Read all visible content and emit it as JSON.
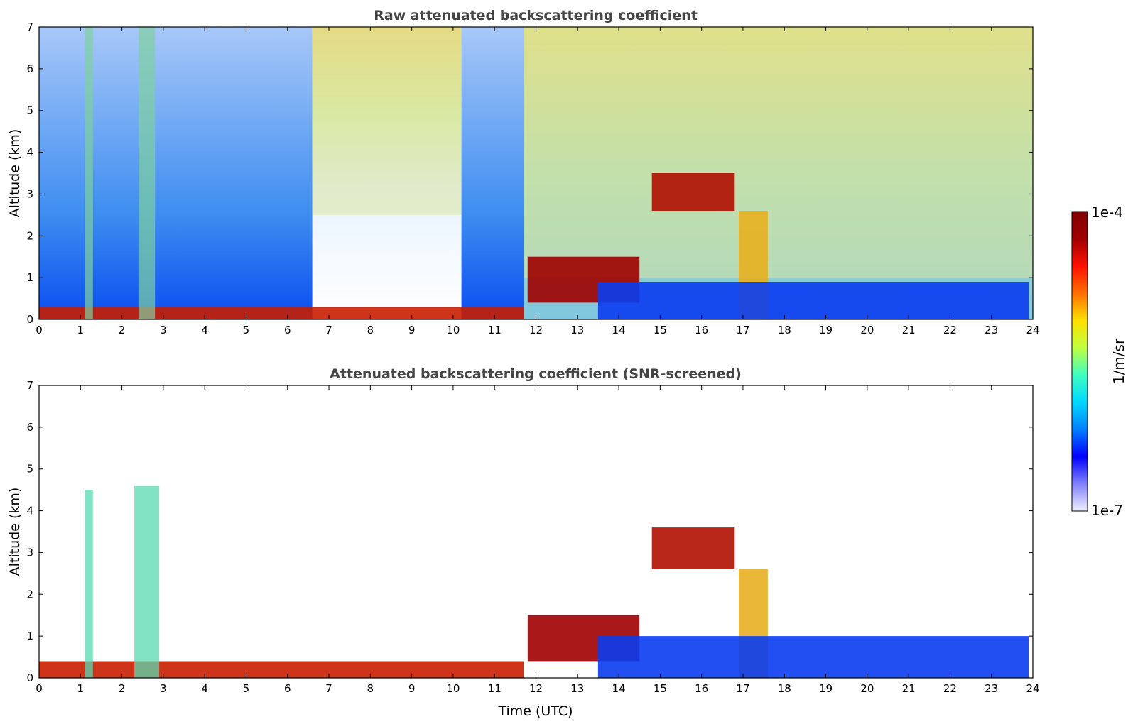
{
  "chart_data": [
    {
      "type": "heatmap",
      "title": "Raw attenuated backscattering coefficient",
      "xlabel": "",
      "ylabel": "Altitude (km)",
      "xlim": [
        0,
        24
      ],
      "ylim": [
        0,
        7
      ],
      "x_ticks": [
        "0",
        "1",
        "2",
        "3",
        "4",
        "5",
        "6",
        "7",
        "8",
        "9",
        "10",
        "11",
        "12",
        "13",
        "14",
        "15",
        "16",
        "17",
        "18",
        "19",
        "20",
        "21",
        "22",
        "23",
        "24"
      ],
      "y_ticks": [
        "0",
        "1",
        "2",
        "3",
        "4",
        "5",
        "6",
        "7"
      ],
      "colorscale": "jet, log scale",
      "features": [
        {
          "feature": "aerosol boundary layer",
          "time_utc": [
            0,
            11.7
          ],
          "altitude_km": [
            0,
            0.3
          ]
        },
        {
          "feature": "vertical streaks (noise)",
          "time_utc": [
            1.1,
            1.3
          ],
          "altitude_km": [
            0,
            7
          ]
        },
        {
          "feature": "vertical streaks (noise)",
          "time_utc": [
            2.4,
            2.8
          ],
          "altitude_km": [
            0,
            7
          ]
        },
        {
          "feature": "elevated background noise (daytime)",
          "time_utc": [
            6.6,
            10.2
          ],
          "altitude_km": [
            2.5,
            7
          ]
        },
        {
          "feature": "elevated background noise (daytime)",
          "time_utc": [
            11.7,
            24
          ],
          "altitude_km": [
            1,
            7
          ]
        },
        {
          "feature": "low clouds",
          "time_utc": [
            11.8,
            14.5
          ],
          "altitude_km": [
            0.4,
            1.5
          ]
        },
        {
          "feature": "mid-level clouds",
          "time_utc": [
            14.8,
            16.8
          ],
          "altitude_km": [
            2.6,
            3.5
          ]
        },
        {
          "feature": "precipitation",
          "time_utc": [
            16.9,
            17.6
          ],
          "altitude_km": [
            0,
            2.6
          ]
        },
        {
          "feature": "boundary layer",
          "time_utc": [
            13.5,
            23.9
          ],
          "altitude_km": [
            0,
            0.9
          ]
        }
      ]
    },
    {
      "type": "heatmap",
      "title": "Attenuated backscattering coefficient (SNR-screened)",
      "xlabel": "Time (UTC)",
      "ylabel": "Altitude (km)",
      "xlim": [
        0,
        24
      ],
      "ylim": [
        0,
        7
      ],
      "x_ticks": [
        "0",
        "1",
        "2",
        "3",
        "4",
        "5",
        "6",
        "7",
        "8",
        "9",
        "10",
        "11",
        "12",
        "13",
        "14",
        "15",
        "16",
        "17",
        "18",
        "19",
        "20",
        "21",
        "22",
        "23",
        "24"
      ],
      "y_ticks": [
        "0",
        "1",
        "2",
        "3",
        "4",
        "5",
        "6",
        "7"
      ],
      "colorscale": "jet, log scale",
      "features": [
        {
          "feature": "aerosol boundary layer",
          "time_utc": [
            0,
            11.7
          ],
          "altitude_km": [
            0,
            0.4
          ]
        },
        {
          "feature": "aerosol plume",
          "time_utc": [
            1.1,
            1.3
          ],
          "altitude_km": [
            0,
            4.5
          ]
        },
        {
          "feature": "aerosol plume",
          "time_utc": [
            2.3,
            2.9
          ],
          "altitude_km": [
            0,
            4.6
          ]
        },
        {
          "feature": "low clouds",
          "time_utc": [
            11.8,
            14.5
          ],
          "altitude_km": [
            0.4,
            1.5
          ]
        },
        {
          "feature": "mid-level clouds",
          "time_utc": [
            14.8,
            16.8
          ],
          "altitude_km": [
            2.6,
            3.6
          ]
        },
        {
          "feature": "precipitation",
          "time_utc": [
            16.9,
            17.6
          ],
          "altitude_km": [
            0,
            2.6
          ]
        },
        {
          "feature": "boundary layer",
          "time_utc": [
            13.5,
            23.9
          ],
          "altitude_km": [
            0,
            1.0
          ]
        }
      ]
    }
  ],
  "colorbar": {
    "max_label": "1e-4",
    "min_label": "1e-7",
    "unit_label": "1/m/sr",
    "scale": "log",
    "colors": [
      "#f0f0ff",
      "#8080ff",
      "#0000ff",
      "#0080ff",
      "#00d8ff",
      "#40ffc0",
      "#c0ff40",
      "#ffe000",
      "#ff7000",
      "#ff1000",
      "#a00000",
      "#800000"
    ]
  }
}
